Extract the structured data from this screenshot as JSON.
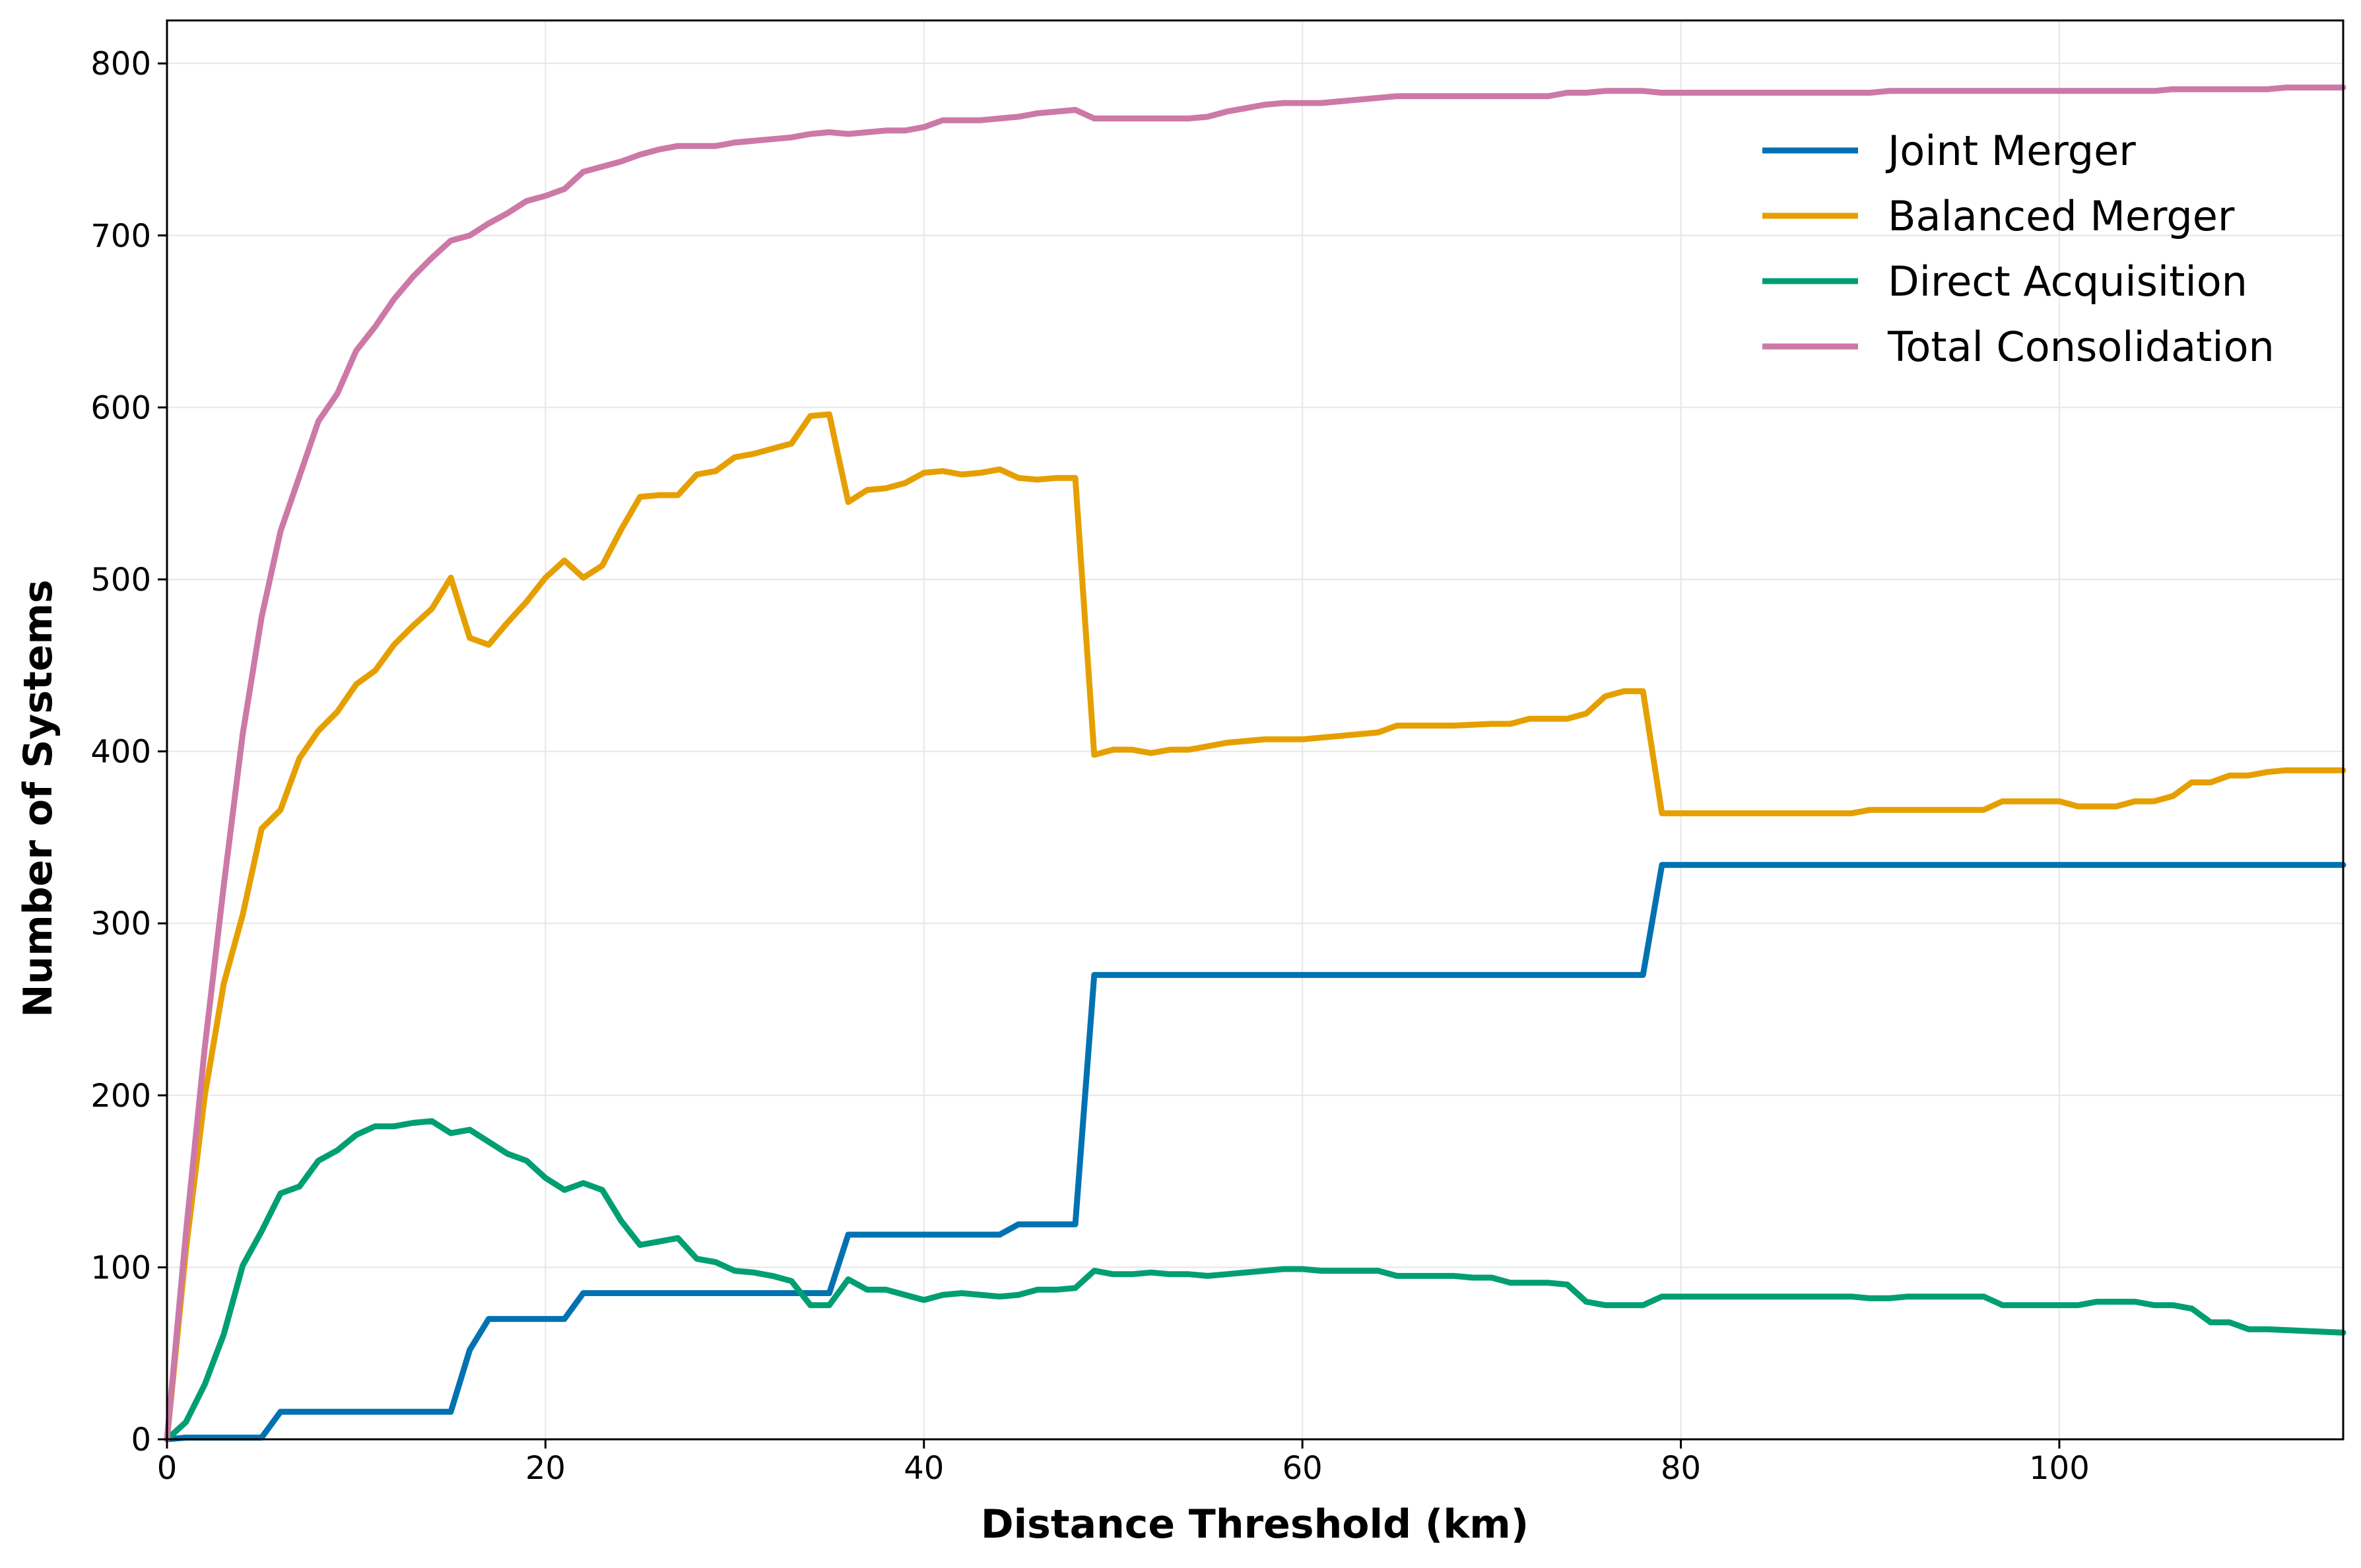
{
  "chart_data": {
    "type": "line",
    "xlabel": "Distance Threshold (km)",
    "ylabel": "Number of Systems",
    "xlim": [
      0,
      115
    ],
    "ylim": [
      0,
      825
    ],
    "xticks": [
      0,
      20,
      40,
      60,
      80,
      100
    ],
    "yticks": [
      0,
      100,
      200,
      300,
      400,
      500,
      600,
      700,
      800
    ],
    "grid": true,
    "legend_position": "top-right",
    "series": [
      {
        "name": "Joint Merger",
        "color": "#0072b2",
        "x": [
          0,
          1,
          5,
          6,
          15,
          16,
          17,
          21,
          22,
          35,
          36,
          44,
          45,
          48,
          49,
          78,
          79,
          115
        ],
        "y": [
          0,
          1,
          1,
          16,
          16,
          52,
          70,
          70,
          85,
          85,
          119,
          119,
          125,
          125,
          270,
          270,
          334,
          334
        ]
      },
      {
        "name": "Balanced Merger",
        "color": "#e69f00",
        "x": [
          0,
          1,
          2,
          3,
          4,
          5,
          6,
          7,
          8,
          9,
          10,
          11,
          12,
          13,
          14,
          15,
          16,
          17,
          18,
          19,
          20,
          21,
          22,
          23,
          24,
          25,
          26,
          27,
          28,
          29,
          30,
          31,
          32,
          33,
          34,
          35,
          36,
          37,
          38,
          39,
          40,
          41,
          42,
          43,
          44,
          45,
          46,
          47,
          48,
          49,
          50,
          51,
          52,
          53,
          54,
          55,
          56,
          57,
          58,
          60,
          62,
          64,
          65,
          68,
          70,
          71,
          72,
          73,
          74,
          75,
          76,
          77,
          78,
          79,
          85,
          89,
          90,
          96,
          97,
          100,
          101,
          103,
          104,
          105,
          106,
          107,
          108,
          109,
          110,
          111,
          112,
          115
        ],
        "y": [
          0,
          110,
          200,
          265,
          305,
          355,
          366,
          396,
          412,
          423,
          439,
          447,
          462,
          473,
          483,
          501,
          466,
          462,
          475,
          487,
          501,
          511,
          501,
          508,
          529,
          548,
          549,
          549,
          561,
          563,
          571,
          573,
          576,
          579,
          595,
          596,
          545,
          552,
          553,
          556,
          562,
          563,
          561,
          562,
          564,
          559,
          558,
          559,
          559,
          398,
          401,
          401,
          399,
          401,
          401,
          403,
          405,
          406,
          407,
          407,
          409,
          411,
          415,
          415,
          416,
          416,
          419,
          419,
          419,
          422,
          432,
          435,
          435,
          364,
          364,
          364,
          366,
          366,
          371,
          371,
          368,
          368,
          371,
          371,
          374,
          382,
          382,
          386,
          386,
          388,
          389,
          389
        ]
      },
      {
        "name": "Direct Acquisition",
        "color": "#009e73",
        "x": [
          0,
          1,
          2,
          3,
          4,
          5,
          6,
          7,
          8,
          9,
          10,
          11,
          12,
          13,
          14,
          15,
          16,
          17,
          18,
          19,
          20,
          21,
          22,
          23,
          24,
          25,
          26,
          27,
          28,
          29,
          30,
          31,
          32,
          33,
          34,
          35,
          36,
          37,
          38,
          39,
          40,
          41,
          42,
          43,
          44,
          45,
          46,
          47,
          48,
          49,
          50,
          51,
          52,
          53,
          54,
          55,
          56,
          57,
          58,
          59,
          60,
          61,
          62,
          63,
          64,
          65,
          66,
          67,
          68,
          69,
          70,
          71,
          72,
          73,
          74,
          75,
          76,
          77,
          78,
          79,
          80,
          85,
          89,
          90,
          91,
          92,
          95,
          96,
          97,
          100,
          101,
          102,
          103,
          104,
          105,
          106,
          107,
          108,
          109,
          110,
          111,
          115
        ],
        "y": [
          0,
          10,
          32,
          61,
          101,
          121,
          143,
          147,
          162,
          168,
          177,
          182,
          182,
          184,
          185,
          178,
          180,
          173,
          166,
          162,
          152,
          145,
          149,
          145,
          127,
          113,
          115,
          117,
          105,
          103,
          98,
          97,
          95,
          92,
          78,
          78,
          93,
          87,
          87,
          84,
          81,
          84,
          85,
          84,
          83,
          84,
          87,
          87,
          88,
          98,
          96,
          96,
          97,
          96,
          96,
          95,
          96,
          97,
          98,
          99,
          99,
          98,
          98,
          98,
          98,
          95,
          95,
          95,
          95,
          94,
          94,
          91,
          91,
          91,
          90,
          80,
          78,
          78,
          78,
          83,
          83,
          83,
          83,
          82,
          82,
          83,
          83,
          83,
          78,
          78,
          78,
          80,
          80,
          80,
          78,
          78,
          76,
          68,
          68,
          64,
          64,
          62
        ]
      },
      {
        "name": "Total Consolidation",
        "color": "#cc79a7",
        "x": [
          0,
          1,
          2,
          3,
          4,
          5,
          6,
          7,
          8,
          9,
          10,
          11,
          12,
          13,
          14,
          15,
          16,
          17,
          18,
          19,
          20,
          21,
          22,
          23,
          24,
          25,
          26,
          27,
          28,
          29,
          30,
          31,
          32,
          33,
          34,
          35,
          36,
          37,
          38,
          39,
          40,
          41,
          42,
          43,
          44,
          45,
          46,
          47,
          48,
          49,
          50,
          51,
          52,
          53,
          54,
          55,
          56,
          57,
          58,
          59,
          60,
          61,
          62,
          63,
          64,
          65,
          66,
          67,
          68,
          69,
          70,
          71,
          72,
          73,
          74,
          75,
          76,
          77,
          78,
          79,
          85,
          90,
          91,
          92,
          100,
          105,
          106,
          107,
          111,
          112,
          115
        ],
        "y": [
          0,
          120,
          228,
          322,
          410,
          478,
          528,
          560,
          592,
          608,
          633,
          647,
          663,
          676,
          687,
          697,
          700,
          707,
          713,
          720,
          723,
          727,
          737,
          740,
          743,
          747,
          750,
          752,
          752,
          752,
          754,
          755,
          756,
          757,
          759,
          760,
          759,
          760,
          761,
          761,
          763,
          767,
          767,
          767,
          768,
          769,
          771,
          772,
          773,
          768,
          768,
          768,
          768,
          768,
          768,
          769,
          772,
          774,
          776,
          777,
          777,
          777,
          778,
          779,
          780,
          781,
          781,
          781,
          781,
          781,
          781,
          781,
          781,
          781,
          783,
          783,
          784,
          784,
          784,
          783,
          783,
          783,
          784,
          784,
          784,
          784,
          785,
          785,
          785,
          786,
          786
        ]
      }
    ]
  }
}
